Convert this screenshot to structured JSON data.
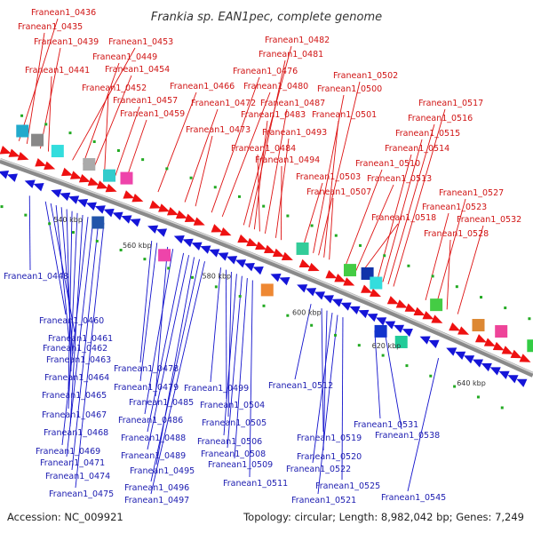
{
  "title": "Frankia sp. EAN1pec, complete genome",
  "footer": {
    "accession": "Accession: NC_009921",
    "stats": "Topology: circular; Length: 8,982,042 bp; Genes: 7,249"
  },
  "colors": {
    "forward": "#ee1111",
    "reverse": "#1515d8",
    "backbone": "#8a8a8a",
    "rna": "#22aa22"
  },
  "ticks": [
    "540 kbp",
    "560 kbp",
    "580 kbp",
    "600 kbp",
    "620 kbp",
    "640 kbp"
  ],
  "forward_genes": [
    "Franean1_0436",
    "Franean1_0435",
    "Franean1_0439",
    "Franean1_0441",
    "Franean1_0453",
    "Franean1_0449",
    "Franean1_0454",
    "Franean1_0452",
    "Franean1_0457",
    "Franean1_0459",
    "Franean1_0466",
    "Franean1_0472",
    "Franean1_0473",
    "Franean1_0476",
    "Franean1_0480",
    "Franean1_0482",
    "Franean1_0481",
    "Franean1_0483",
    "Franean1_0487",
    "Franean1_0484",
    "Franean1_0493",
    "Franean1_0494",
    "Franean1_0502",
    "Franean1_0500",
    "Franean1_0501",
    "Franean1_0503",
    "Franean1_0507",
    "Franean1_0510",
    "Franean1_0513",
    "Franean1_0517",
    "Franean1_0516",
    "Franean1_0515",
    "Franean1_0514",
    "Franean1_0518",
    "Franean1_0527",
    "Franean1_0523",
    "Franean1_0532",
    "Franean1_0528"
  ],
  "reverse_genes": [
    "Franean1_0448",
    "Franean1_0460",
    "Franean1_0461",
    "Franean1_0462",
    "Franean1_0463",
    "Franean1_0464",
    "Franean1_0465",
    "Franean1_0467",
    "Franean1_0468",
    "Franean1_0469",
    "Franean1_0471",
    "Franean1_0474",
    "Franean1_0475",
    "Franean1_0478",
    "Franean1_0479",
    "Franean1_0485",
    "Franean1_0486",
    "Franean1_0488",
    "Franean1_0489",
    "Franean1_0495",
    "Franean1_0496",
    "Franean1_0497",
    "Franean1_0499",
    "Franean1_0504",
    "Franean1_0505",
    "Franean1_0506",
    "Franean1_0508",
    "Franean1_0509",
    "Franean1_0511",
    "Franean1_0512",
    "Franean1_0519",
    "Franean1_0520",
    "Franean1_0522",
    "Franean1_0521",
    "Franean1_0525",
    "Franean1_0531",
    "Franean1_0538",
    "Franean1_0545"
  ]
}
